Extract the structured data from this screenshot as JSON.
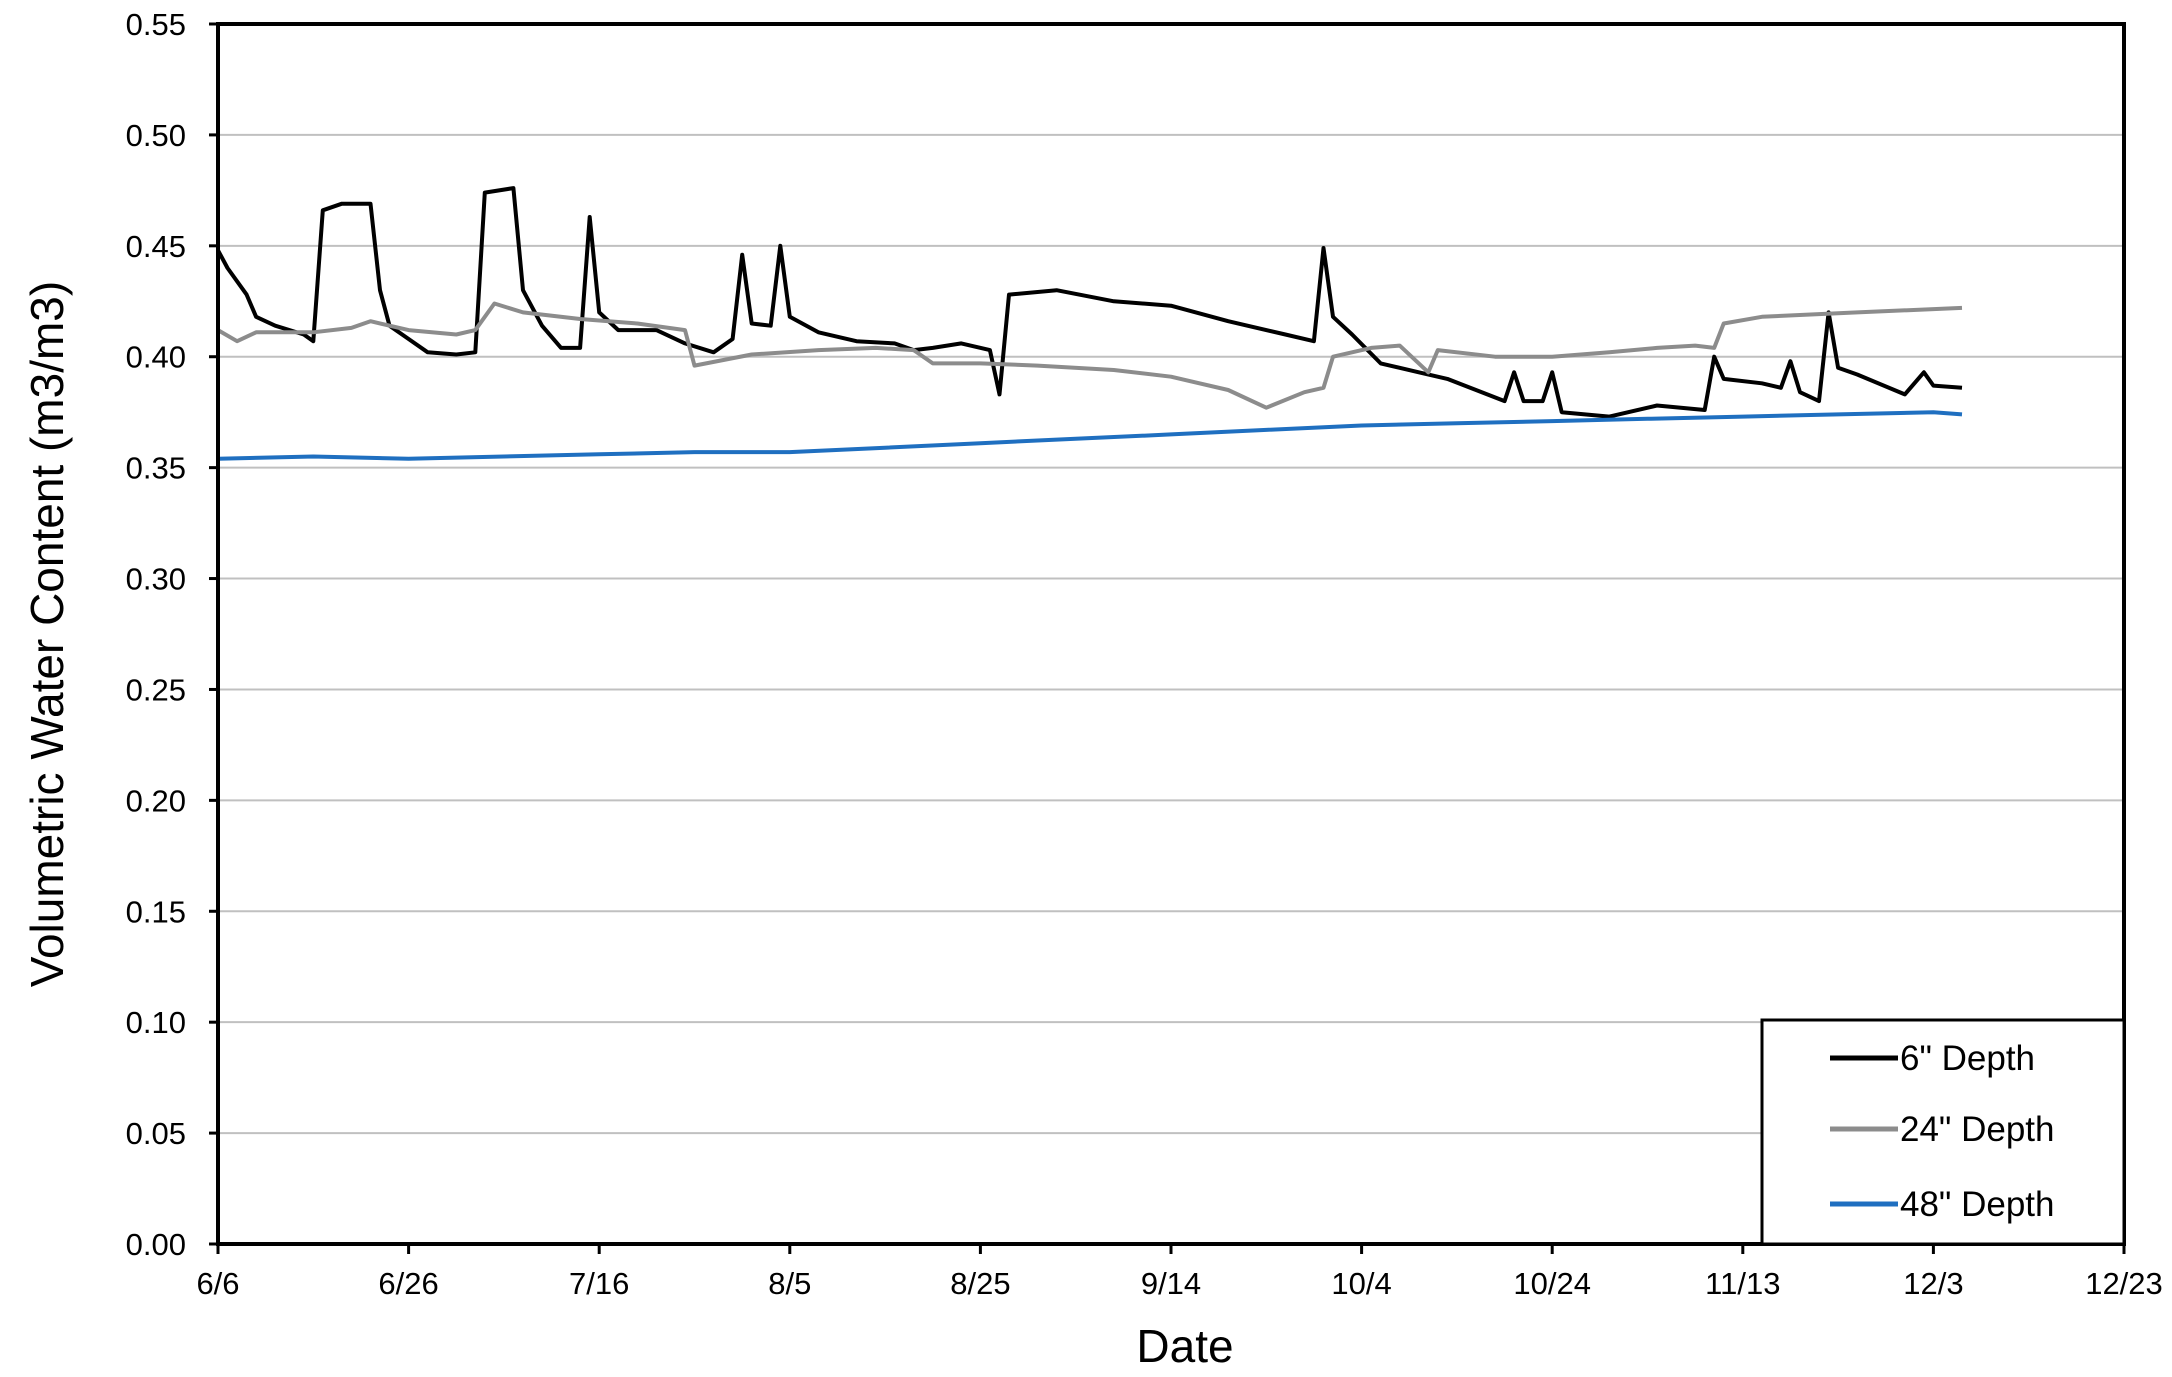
{
  "chart_data": {
    "type": "line",
    "title": "",
    "xlabel": "Date",
    "ylabel": "Volumetric Water Content (m3/m3)",
    "xlim": [
      "6/6",
      "12/23"
    ],
    "ylim": [
      0,
      0.55
    ],
    "x_ticks": [
      "6/6",
      "6/26",
      "7/16",
      "8/5",
      "8/25",
      "9/14",
      "10/4",
      "10/24",
      "11/13",
      "12/3",
      "12/23"
    ],
    "y_ticks": [
      "0.00",
      "0.05",
      "0.10",
      "0.15",
      "0.20",
      "0.25",
      "0.30",
      "0.35",
      "0.40",
      "0.45",
      "0.50",
      "0.55"
    ],
    "grid": "horizontal",
    "legend_position": "bottom-right",
    "series": [
      {
        "name": "6\" Depth",
        "color": "#000000",
        "points": [
          [
            "6/6",
            0.448
          ],
          [
            "6/7",
            0.44
          ],
          [
            "6/9",
            0.428
          ],
          [
            "6/10",
            0.418
          ],
          [
            "6/12",
            0.414
          ],
          [
            "6/15",
            0.41
          ],
          [
            "6/16",
            0.407
          ],
          [
            "6/17",
            0.466
          ],
          [
            "6/19",
            0.469
          ],
          [
            "6/22",
            0.469
          ],
          [
            "6/23",
            0.43
          ],
          [
            "6/24",
            0.414
          ],
          [
            "6/26",
            0.408
          ],
          [
            "6/28",
            0.402
          ],
          [
            "7/1",
            0.401
          ],
          [
            "7/3",
            0.402
          ],
          [
            "7/4",
            0.474
          ],
          [
            "7/7",
            0.476
          ],
          [
            "7/8",
            0.43
          ],
          [
            "7/10",
            0.414
          ],
          [
            "7/12",
            0.404
          ],
          [
            "7/14",
            0.404
          ],
          [
            "7/15",
            0.463
          ],
          [
            "7/16",
            0.42
          ],
          [
            "7/18",
            0.412
          ],
          [
            "7/22",
            0.412
          ],
          [
            "7/25",
            0.406
          ],
          [
            "7/28",
            0.402
          ],
          [
            "7/30",
            0.408
          ],
          [
            "7/31",
            0.446
          ],
          [
            "8/1",
            0.415
          ],
          [
            "8/3",
            0.414
          ],
          [
            "8/4",
            0.45
          ],
          [
            "8/5",
            0.418
          ],
          [
            "8/8",
            0.411
          ],
          [
            "8/12",
            0.407
          ],
          [
            "8/16",
            0.406
          ],
          [
            "8/18",
            0.403
          ],
          [
            "8/20",
            0.404
          ],
          [
            "8/23",
            0.406
          ],
          [
            "8/26",
            0.403
          ],
          [
            "8/27",
            0.383
          ],
          [
            "8/28",
            0.428
          ],
          [
            "9/2",
            0.43
          ],
          [
            "9/8",
            0.425
          ],
          [
            "9/14",
            0.423
          ],
          [
            "9/20",
            0.416
          ],
          [
            "9/26",
            0.41
          ],
          [
            "9/29",
            0.407
          ],
          [
            "9/30",
            0.449
          ],
          [
            "10/1",
            0.418
          ],
          [
            "10/3",
            0.41
          ],
          [
            "10/6",
            0.397
          ],
          [
            "10/10",
            0.393
          ],
          [
            "10/13",
            0.39
          ],
          [
            "10/16",
            0.385
          ],
          [
            "10/19",
            0.38
          ],
          [
            "10/20",
            0.393
          ],
          [
            "10/21",
            0.38
          ],
          [
            "10/23",
            0.38
          ],
          [
            "10/24",
            0.393
          ],
          [
            "10/25",
            0.375
          ],
          [
            "10/30",
            0.373
          ],
          [
            "11/4",
            0.378
          ],
          [
            "11/9",
            0.376
          ],
          [
            "11/10",
            0.4
          ],
          [
            "11/11",
            0.39
          ],
          [
            "11/15",
            0.388
          ],
          [
            "11/17",
            0.386
          ],
          [
            "11/18",
            0.398
          ],
          [
            "11/19",
            0.384
          ],
          [
            "11/21",
            0.38
          ],
          [
            "11/22",
            0.42
          ],
          [
            "11/23",
            0.395
          ],
          [
            "11/25",
            0.392
          ],
          [
            "11/30",
            0.383
          ],
          [
            "12/2",
            0.393
          ],
          [
            "12/3",
            0.387
          ],
          [
            "12/6",
            0.386
          ]
        ]
      },
      {
        "name": "24\" Depth",
        "color": "#8c8c8c",
        "points": [
          [
            "6/6",
            0.412
          ],
          [
            "6/8",
            0.407
          ],
          [
            "6/10",
            0.411
          ],
          [
            "6/16",
            0.411
          ],
          [
            "6/20",
            0.413
          ],
          [
            "6/22",
            0.416
          ],
          [
            "6/26",
            0.412
          ],
          [
            "7/1",
            0.41
          ],
          [
            "7/3",
            0.412
          ],
          [
            "7/5",
            0.424
          ],
          [
            "7/8",
            0.42
          ],
          [
            "7/14",
            0.417
          ],
          [
            "7/20",
            0.415
          ],
          [
            "7/25",
            0.412
          ],
          [
            "7/26",
            0.396
          ],
          [
            "8/1",
            0.401
          ],
          [
            "8/8",
            0.403
          ],
          [
            "8/14",
            0.404
          ],
          [
            "8/18",
            0.403
          ],
          [
            "8/20",
            0.397
          ],
          [
            "8/25",
            0.397
          ],
          [
            "8/31",
            0.396
          ],
          [
            "9/8",
            0.394
          ],
          [
            "9/14",
            0.391
          ],
          [
            "9/20",
            0.385
          ],
          [
            "9/24",
            0.377
          ],
          [
            "9/28",
            0.384
          ],
          [
            "9/30",
            0.386
          ],
          [
            "10/1",
            0.4
          ],
          [
            "10/5",
            0.404
          ],
          [
            "10/8",
            0.405
          ],
          [
            "10/11",
            0.393
          ],
          [
            "10/12",
            0.403
          ],
          [
            "10/18",
            0.4
          ],
          [
            "10/24",
            0.4
          ],
          [
            "10/30",
            0.402
          ],
          [
            "11/4",
            0.404
          ],
          [
            "11/8",
            0.405
          ],
          [
            "11/10",
            0.404
          ],
          [
            "11/11",
            0.415
          ],
          [
            "11/15",
            0.418
          ],
          [
            "11/25",
            0.42
          ],
          [
            "12/6",
            0.422
          ]
        ]
      },
      {
        "name": "48\" Depth",
        "color": "#1f6fc0",
        "points": [
          [
            "6/6",
            0.354
          ],
          [
            "6/16",
            0.355
          ],
          [
            "6/26",
            0.354
          ],
          [
            "7/6",
            0.355
          ],
          [
            "7/16",
            0.356
          ],
          [
            "7/26",
            0.357
          ],
          [
            "8/5",
            0.357
          ],
          [
            "8/15",
            0.359
          ],
          [
            "8/25",
            0.361
          ],
          [
            "9/4",
            0.363
          ],
          [
            "9/14",
            0.365
          ],
          [
            "9/24",
            0.367
          ],
          [
            "10/4",
            0.369
          ],
          [
            "10/14",
            0.37
          ],
          [
            "10/24",
            0.371
          ],
          [
            "11/3",
            0.372
          ],
          [
            "11/13",
            0.373
          ],
          [
            "11/23",
            0.374
          ],
          [
            "12/3",
            0.375
          ],
          [
            "12/6",
            0.374
          ]
        ]
      }
    ]
  }
}
